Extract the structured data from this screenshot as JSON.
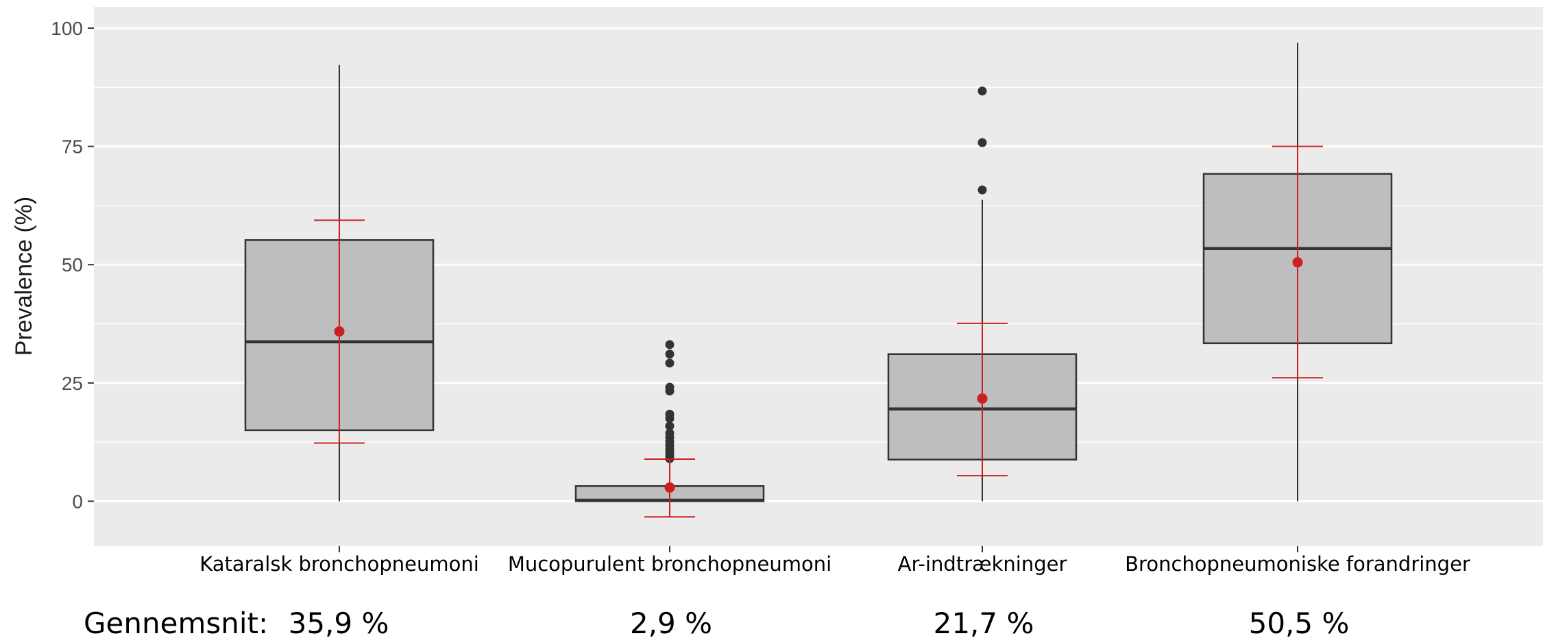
{
  "chart_data": {
    "type": "boxplot",
    "ylabel": "Prevalence (%)",
    "xlabel": "",
    "ylim": [
      -9.5,
      104.5
    ],
    "yticks": [
      0,
      25,
      50,
      75,
      100
    ],
    "grid": true,
    "colors": {
      "panel": "#ebebeb",
      "grid": "#ffffff",
      "box_fill": "#bebebe",
      "box_stroke": "#333333",
      "outlier": "#333333",
      "mean": "#cc1f1f"
    },
    "categories": [
      "Kataralsk bronchopneumoni",
      "Mucopurulent bronchopneumoni",
      "Ar-indtrækninger",
      "Bronchopneumoniske forandringer"
    ],
    "boxes": [
      {
        "whisker_low": 0,
        "q1": 15,
        "median": 33.7,
        "q3": 55.2,
        "whisker_high": 92.2,
        "outliers": []
      },
      {
        "whisker_low": 0,
        "q1": 0,
        "median": 0.2,
        "q3": 3.2,
        "whisker_high": 3.2,
        "outliers": [
          9,
          9.6,
          10.3,
          11,
          11.8,
          12.6,
          13.5,
          14.4,
          15.9,
          17.5,
          18.4,
          23.3,
          24.1,
          29.2,
          31.1,
          33.1
        ]
      },
      {
        "whisker_low": 0,
        "q1": 8.8,
        "median": 19.5,
        "q3": 31.1,
        "whisker_high": 63.7,
        "outliers": [
          65.8,
          75.8,
          86.7
        ]
      },
      {
        "whisker_low": 0,
        "q1": 33.4,
        "median": 53.4,
        "q3": 69.2,
        "whisker_high": 96.9,
        "outliers": []
      }
    ],
    "means": [
      35.9,
      2.9,
      21.7,
      50.5
    ],
    "mean_error_bars": [
      {
        "low": 12.3,
        "high": 59.4
      },
      {
        "low": -3.3,
        "high": 8.9
      },
      {
        "low": 5.4,
        "high": 37.6
      },
      {
        "low": 26.1,
        "high": 75
      }
    ]
  },
  "footer": {
    "label": "Gennemsnit:",
    "values": [
      "35,9 %",
      "2,9 %",
      "21,7 %",
      "50,5 %"
    ]
  }
}
